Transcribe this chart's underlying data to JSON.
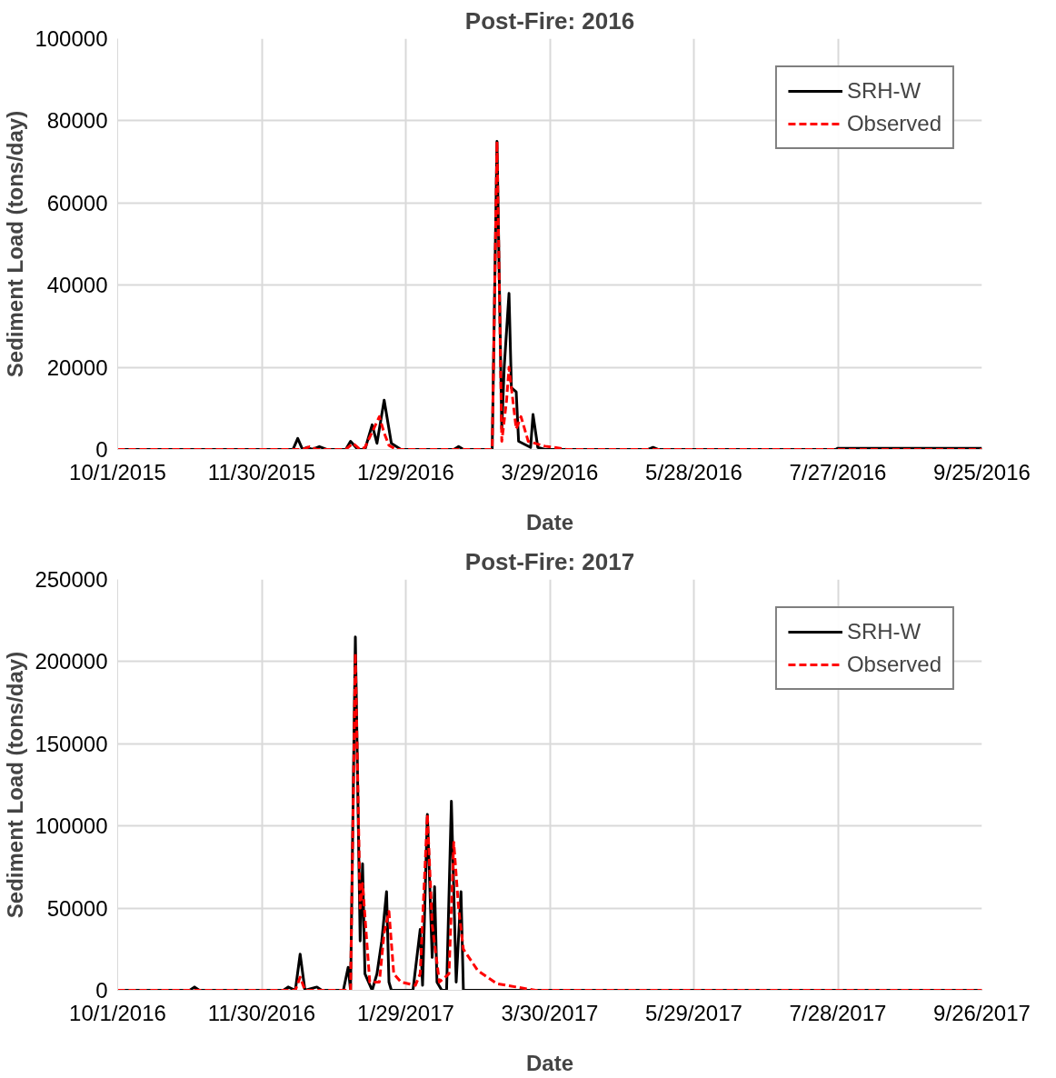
{
  "chart_data": [
    {
      "type": "line",
      "title": "Post-Fire: 2016",
      "xlabel": "Date",
      "ylabel": "Sediment Load (tons/day)",
      "grid": true,
      "legend": "top right",
      "marker": "none",
      "xlim": [
        "2015-10-01",
        "2016-09-25"
      ],
      "xticks": [
        {
          "value": "2015-10-01",
          "label": "10/1/2015"
        },
        {
          "value": "2015-11-30",
          "label": "11/30/2015"
        },
        {
          "value": "2016-01-29",
          "label": "1/29/2016"
        },
        {
          "value": "2016-03-29",
          "label": "3/29/2016"
        },
        {
          "value": "2016-05-28",
          "label": "5/28/2016"
        },
        {
          "value": "2016-07-27",
          "label": "7/27/2016"
        },
        {
          "value": "2016-09-25",
          "label": "9/25/2016"
        }
      ],
      "ylim": [
        0,
        100000
      ],
      "yticks": [
        0,
        20000,
        40000,
        60000,
        80000,
        100000
      ],
      "series": [
        {
          "name": "SRH-W",
          "color": "#000000",
          "line_style": "solid",
          "x": [
            "2015-10-01",
            "2015-12-13",
            "2015-12-15",
            "2015-12-17",
            "2015-12-19",
            "2015-12-21",
            "2015-12-24",
            "2015-12-27",
            "2016-01-04",
            "2016-01-06",
            "2016-01-09",
            "2016-01-12",
            "2016-01-15",
            "2016-01-17",
            "2016-01-20",
            "2016-01-23",
            "2016-01-27",
            "2016-02-18",
            "2016-02-20",
            "2016-02-22",
            "2016-03-05",
            "2016-03-07",
            "2016-03-09",
            "2016-03-10",
            "2016-03-12",
            "2016-03-13",
            "2016-03-15",
            "2016-03-16",
            "2016-03-21",
            "2016-03-22",
            "2016-03-24",
            "2016-03-27",
            "2016-05-09",
            "2016-05-11",
            "2016-05-13",
            "2016-07-26",
            "2016-07-27",
            "2016-09-25"
          ],
          "values": [
            0,
            0,
            2700,
            0,
            500,
            0,
            700,
            0,
            0,
            2000,
            0,
            0,
            6000,
            1500,
            12000,
            1500,
            0,
            0,
            700,
            0,
            0,
            75000,
            5000,
            20000,
            38000,
            15000,
            14000,
            2000,
            500,
            8500,
            500,
            0,
            0,
            500,
            0,
            0,
            300,
            300
          ]
        },
        {
          "name": "Observed",
          "color": "#ff0000",
          "line_style": "dashed",
          "x": [
            "2015-10-01",
            "2015-12-17",
            "2015-12-20",
            "2015-12-23",
            "2016-01-04",
            "2016-01-07",
            "2016-01-10",
            "2016-01-12",
            "2016-01-18",
            "2016-01-20",
            "2016-01-22",
            "2016-01-25",
            "2016-03-05",
            "2016-03-07",
            "2016-03-09",
            "2016-03-11",
            "2016-03-12",
            "2016-03-15",
            "2016-03-17",
            "2016-03-20",
            "2016-03-27",
            "2016-03-31",
            "2016-04-05",
            "2016-09-25"
          ],
          "values": [
            0,
            0,
            700,
            0,
            0,
            1500,
            0,
            500,
            8000,
            4000,
            1000,
            0,
            0,
            75000,
            2000,
            12000,
            20000,
            5000,
            8000,
            2000,
            800,
            500,
            0,
            0
          ]
        }
      ]
    },
    {
      "type": "line",
      "title": "Post-Fire: 2017",
      "xlabel": "Date",
      "ylabel": "Sediment Load (tons/day)",
      "grid": true,
      "legend": "top right",
      "marker": "none",
      "xlim": [
        "2016-10-01",
        "2017-09-26"
      ],
      "xticks": [
        {
          "value": "2016-10-01",
          "label": "10/1/2016"
        },
        {
          "value": "2016-11-30",
          "label": "11/30/2016"
        },
        {
          "value": "2017-01-29",
          "label": "1/29/2017"
        },
        {
          "value": "2017-03-30",
          "label": "3/30/2017"
        },
        {
          "value": "2017-05-29",
          "label": "5/29/2017"
        },
        {
          "value": "2017-07-28",
          "label": "7/28/2017"
        },
        {
          "value": "2017-09-26",
          "label": "9/26/2017"
        }
      ],
      "ylim": [
        0,
        250000
      ],
      "yticks": [
        0,
        50000,
        100000,
        150000,
        200000,
        250000
      ],
      "series": [
        {
          "name": "SRH-W",
          "color": "#000000",
          "line_style": "solid",
          "x": [
            "2016-10-01",
            "2016-10-31",
            "2016-11-02",
            "2016-11-04",
            "2016-12-09",
            "2016-12-11",
            "2016-12-14",
            "2016-12-16",
            "2016-12-18",
            "2016-12-23",
            "2016-12-25",
            "2017-01-03",
            "2017-01-05",
            "2017-01-06",
            "2017-01-08",
            "2017-01-10",
            "2017-01-11",
            "2017-01-12",
            "2017-01-15",
            "2017-01-17",
            "2017-01-19",
            "2017-01-21",
            "2017-01-22",
            "2017-01-23",
            "2017-02-01",
            "2017-02-04",
            "2017-02-05",
            "2017-02-07",
            "2017-02-09",
            "2017-02-10",
            "2017-02-11",
            "2017-02-13",
            "2017-02-15",
            "2017-02-17",
            "2017-02-19",
            "2017-02-21",
            "2017-02-22",
            "2017-09-26"
          ],
          "values": [
            0,
            0,
            2000,
            0,
            0,
            2000,
            0,
            22000,
            0,
            2000,
            0,
            0,
            14000,
            0,
            215000,
            30000,
            77000,
            10000,
            0,
            10000,
            30000,
            60000,
            5000,
            0,
            0,
            37000,
            3000,
            107000,
            20000,
            63000,
            5000,
            0,
            0,
            115000,
            5000,
            60000,
            0,
            0
          ]
        },
        {
          "name": "Observed",
          "color": "#ff0000",
          "line_style": "dashed",
          "x": [
            "2016-10-01",
            "2016-12-14",
            "2016-12-16",
            "2016-12-18",
            "2017-01-06",
            "2017-01-08",
            "2017-01-10",
            "2017-01-11",
            "2017-01-14",
            "2017-01-18",
            "2017-01-20",
            "2017-01-22",
            "2017-01-24",
            "2017-01-27",
            "2017-02-02",
            "2017-02-04",
            "2017-02-07",
            "2017-02-09",
            "2017-02-12",
            "2017-02-16",
            "2017-02-18",
            "2017-02-20",
            "2017-02-22",
            "2017-02-28",
            "2017-03-08",
            "2017-03-16",
            "2017-03-24",
            "2017-09-26"
          ],
          "values": [
            0,
            0,
            8000,
            0,
            0,
            205000,
            50000,
            65000,
            5000,
            5000,
            35000,
            48000,
            10000,
            5000,
            3000,
            10000,
            107000,
            40000,
            5000,
            10000,
            90000,
            50000,
            25000,
            12000,
            4000,
            2000,
            0,
            0
          ]
        }
      ]
    }
  ]
}
